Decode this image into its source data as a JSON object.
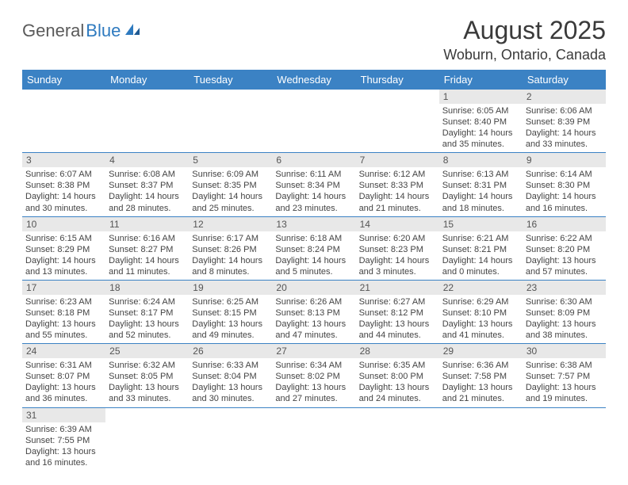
{
  "logo": {
    "text1": "General",
    "text2": "Blue"
  },
  "header": {
    "month_title": "August 2025",
    "location": "Woburn, Ontario, Canada"
  },
  "colors": {
    "header_bg": "#3b82c4",
    "header_fg": "#ffffff",
    "row_divider": "#3b82c4",
    "daynum_bg": "#e8e8e8",
    "logo_gray": "#5a5a5a",
    "logo_blue": "#2e7abf",
    "text": "#444444"
  },
  "day_labels": [
    "Sunday",
    "Monday",
    "Tuesday",
    "Wednesday",
    "Thursday",
    "Friday",
    "Saturday"
  ],
  "weeks": [
    [
      null,
      null,
      null,
      null,
      null,
      {
        "n": "1",
        "sr": "Sunrise: 6:05 AM",
        "ss": "Sunset: 8:40 PM",
        "dl1": "Daylight: 14 hours",
        "dl2": "and 35 minutes."
      },
      {
        "n": "2",
        "sr": "Sunrise: 6:06 AM",
        "ss": "Sunset: 8:39 PM",
        "dl1": "Daylight: 14 hours",
        "dl2": "and 33 minutes."
      }
    ],
    [
      {
        "n": "3",
        "sr": "Sunrise: 6:07 AM",
        "ss": "Sunset: 8:38 PM",
        "dl1": "Daylight: 14 hours",
        "dl2": "and 30 minutes."
      },
      {
        "n": "4",
        "sr": "Sunrise: 6:08 AM",
        "ss": "Sunset: 8:37 PM",
        "dl1": "Daylight: 14 hours",
        "dl2": "and 28 minutes."
      },
      {
        "n": "5",
        "sr": "Sunrise: 6:09 AM",
        "ss": "Sunset: 8:35 PM",
        "dl1": "Daylight: 14 hours",
        "dl2": "and 25 minutes."
      },
      {
        "n": "6",
        "sr": "Sunrise: 6:11 AM",
        "ss": "Sunset: 8:34 PM",
        "dl1": "Daylight: 14 hours",
        "dl2": "and 23 minutes."
      },
      {
        "n": "7",
        "sr": "Sunrise: 6:12 AM",
        "ss": "Sunset: 8:33 PM",
        "dl1": "Daylight: 14 hours",
        "dl2": "and 21 minutes."
      },
      {
        "n": "8",
        "sr": "Sunrise: 6:13 AM",
        "ss": "Sunset: 8:31 PM",
        "dl1": "Daylight: 14 hours",
        "dl2": "and 18 minutes."
      },
      {
        "n": "9",
        "sr": "Sunrise: 6:14 AM",
        "ss": "Sunset: 8:30 PM",
        "dl1": "Daylight: 14 hours",
        "dl2": "and 16 minutes."
      }
    ],
    [
      {
        "n": "10",
        "sr": "Sunrise: 6:15 AM",
        "ss": "Sunset: 8:29 PM",
        "dl1": "Daylight: 14 hours",
        "dl2": "and 13 minutes."
      },
      {
        "n": "11",
        "sr": "Sunrise: 6:16 AM",
        "ss": "Sunset: 8:27 PM",
        "dl1": "Daylight: 14 hours",
        "dl2": "and 11 minutes."
      },
      {
        "n": "12",
        "sr": "Sunrise: 6:17 AM",
        "ss": "Sunset: 8:26 PM",
        "dl1": "Daylight: 14 hours",
        "dl2": "and 8 minutes."
      },
      {
        "n": "13",
        "sr": "Sunrise: 6:18 AM",
        "ss": "Sunset: 8:24 PM",
        "dl1": "Daylight: 14 hours",
        "dl2": "and 5 minutes."
      },
      {
        "n": "14",
        "sr": "Sunrise: 6:20 AM",
        "ss": "Sunset: 8:23 PM",
        "dl1": "Daylight: 14 hours",
        "dl2": "and 3 minutes."
      },
      {
        "n": "15",
        "sr": "Sunrise: 6:21 AM",
        "ss": "Sunset: 8:21 PM",
        "dl1": "Daylight: 14 hours",
        "dl2": "and 0 minutes."
      },
      {
        "n": "16",
        "sr": "Sunrise: 6:22 AM",
        "ss": "Sunset: 8:20 PM",
        "dl1": "Daylight: 13 hours",
        "dl2": "and 57 minutes."
      }
    ],
    [
      {
        "n": "17",
        "sr": "Sunrise: 6:23 AM",
        "ss": "Sunset: 8:18 PM",
        "dl1": "Daylight: 13 hours",
        "dl2": "and 55 minutes."
      },
      {
        "n": "18",
        "sr": "Sunrise: 6:24 AM",
        "ss": "Sunset: 8:17 PM",
        "dl1": "Daylight: 13 hours",
        "dl2": "and 52 minutes."
      },
      {
        "n": "19",
        "sr": "Sunrise: 6:25 AM",
        "ss": "Sunset: 8:15 PM",
        "dl1": "Daylight: 13 hours",
        "dl2": "and 49 minutes."
      },
      {
        "n": "20",
        "sr": "Sunrise: 6:26 AM",
        "ss": "Sunset: 8:13 PM",
        "dl1": "Daylight: 13 hours",
        "dl2": "and 47 minutes."
      },
      {
        "n": "21",
        "sr": "Sunrise: 6:27 AM",
        "ss": "Sunset: 8:12 PM",
        "dl1": "Daylight: 13 hours",
        "dl2": "and 44 minutes."
      },
      {
        "n": "22",
        "sr": "Sunrise: 6:29 AM",
        "ss": "Sunset: 8:10 PM",
        "dl1": "Daylight: 13 hours",
        "dl2": "and 41 minutes."
      },
      {
        "n": "23",
        "sr": "Sunrise: 6:30 AM",
        "ss": "Sunset: 8:09 PM",
        "dl1": "Daylight: 13 hours",
        "dl2": "and 38 minutes."
      }
    ],
    [
      {
        "n": "24",
        "sr": "Sunrise: 6:31 AM",
        "ss": "Sunset: 8:07 PM",
        "dl1": "Daylight: 13 hours",
        "dl2": "and 36 minutes."
      },
      {
        "n": "25",
        "sr": "Sunrise: 6:32 AM",
        "ss": "Sunset: 8:05 PM",
        "dl1": "Daylight: 13 hours",
        "dl2": "and 33 minutes."
      },
      {
        "n": "26",
        "sr": "Sunrise: 6:33 AM",
        "ss": "Sunset: 8:04 PM",
        "dl1": "Daylight: 13 hours",
        "dl2": "and 30 minutes."
      },
      {
        "n": "27",
        "sr": "Sunrise: 6:34 AM",
        "ss": "Sunset: 8:02 PM",
        "dl1": "Daylight: 13 hours",
        "dl2": "and 27 minutes."
      },
      {
        "n": "28",
        "sr": "Sunrise: 6:35 AM",
        "ss": "Sunset: 8:00 PM",
        "dl1": "Daylight: 13 hours",
        "dl2": "and 24 minutes."
      },
      {
        "n": "29",
        "sr": "Sunrise: 6:36 AM",
        "ss": "Sunset: 7:58 PM",
        "dl1": "Daylight: 13 hours",
        "dl2": "and 21 minutes."
      },
      {
        "n": "30",
        "sr": "Sunrise: 6:38 AM",
        "ss": "Sunset: 7:57 PM",
        "dl1": "Daylight: 13 hours",
        "dl2": "and 19 minutes."
      }
    ],
    [
      {
        "n": "31",
        "sr": "Sunrise: 6:39 AM",
        "ss": "Sunset: 7:55 PM",
        "dl1": "Daylight: 13 hours",
        "dl2": "and 16 minutes."
      },
      null,
      null,
      null,
      null,
      null,
      null
    ]
  ]
}
